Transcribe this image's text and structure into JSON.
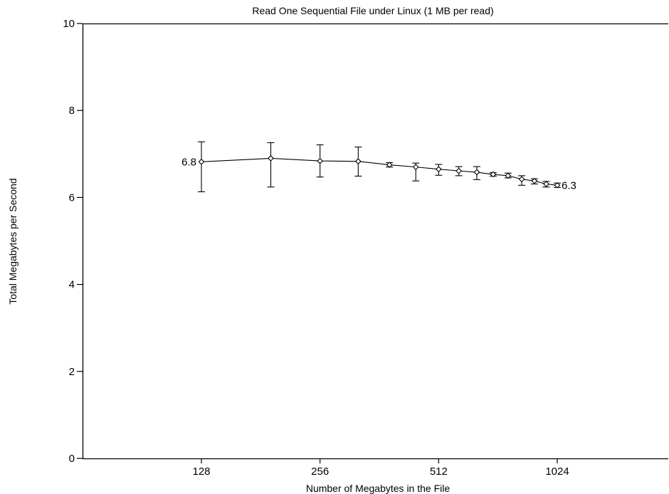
{
  "chart_data": {
    "type": "line",
    "title": "Read One Sequential File under Linux (1 MB per read)",
    "xlabel": "Number of Megabytes in the File",
    "ylabel": "Total Megabytes per Second",
    "x_scale": "log2",
    "xlim": [
      64,
      2048
    ],
    "ylim": [
      0,
      10
    ],
    "x_ticks": [
      128,
      256,
      512,
      1024
    ],
    "x_tick_labels": [
      "128",
      "256",
      "512",
      "1024"
    ],
    "y_ticks": [
      0,
      2,
      4,
      6,
      8,
      10
    ],
    "y_tick_labels": [
      "0",
      "2",
      "4",
      "6",
      "8",
      "10"
    ],
    "grid": false,
    "series": [
      {
        "x": [
          128,
          192,
          256,
          320,
          384,
          448,
          512,
          576,
          640,
          704,
          768,
          832,
          896,
          960,
          1024
        ],
        "y": [
          6.82,
          6.9,
          6.84,
          6.83,
          6.75,
          6.7,
          6.65,
          6.61,
          6.58,
          6.53,
          6.5,
          6.42,
          6.38,
          6.31,
          6.28
        ],
        "low": [
          6.13,
          6.24,
          6.47,
          6.49,
          6.7,
          6.38,
          6.51,
          6.5,
          6.41,
          6.49,
          6.45,
          6.28,
          6.31,
          6.24,
          6.23
        ],
        "high": [
          7.28,
          7.26,
          7.21,
          7.16,
          6.8,
          6.79,
          6.76,
          6.71,
          6.71,
          6.57,
          6.56,
          6.5,
          6.43,
          6.37,
          6.33
        ]
      }
    ],
    "point_labels": [
      {
        "x": 128,
        "y": 6.82,
        "text": "6.8",
        "side": "left"
      },
      {
        "x": 1024,
        "y": 6.28,
        "text": "6.3",
        "side": "right"
      }
    ]
  }
}
